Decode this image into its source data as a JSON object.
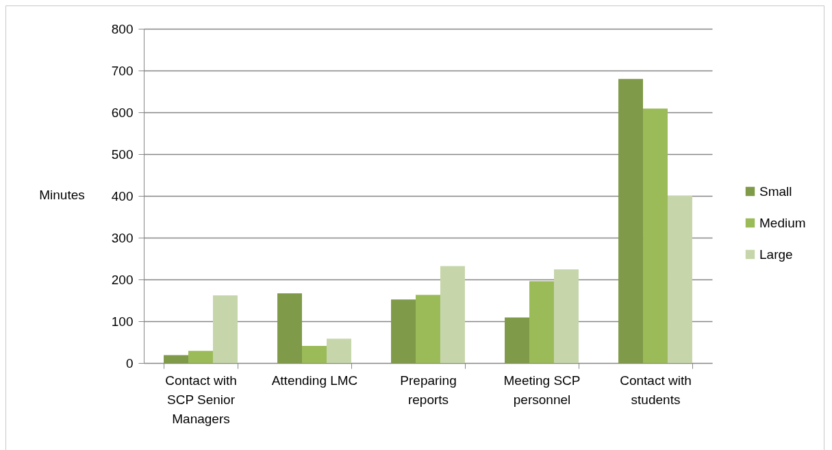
{
  "chart_data": {
    "type": "bar",
    "ylabel": "Minutes",
    "categories": [
      "Contact with SCP Senior Managers",
      "Attending LMC",
      "Preparing reports",
      "Meeting SCP personnel",
      "Contact with students"
    ],
    "series": [
      {
        "name": "Small",
        "color": "#7f9a48",
        "values": [
          19,
          167,
          152,
          109,
          680
        ]
      },
      {
        "name": "Medium",
        "color": "#9bbb59",
        "values": [
          29,
          41,
          163,
          196,
          609
        ]
      },
      {
        "name": "Large",
        "color": "#c6d6aa",
        "values": [
          162,
          58,
          232,
          224,
          400
        ]
      }
    ],
    "ylim": [
      0,
      800
    ],
    "yticks": [
      0,
      100,
      200,
      300,
      400,
      500,
      600,
      700,
      800
    ],
    "grid": "y",
    "legend": "right"
  }
}
